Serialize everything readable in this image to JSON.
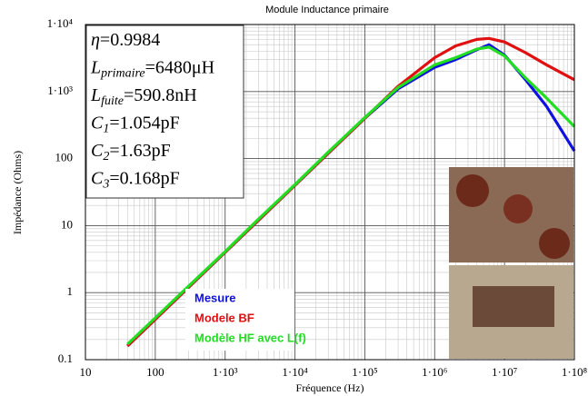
{
  "chart_data": {
    "type": "line",
    "title": "Module Inductance primaire",
    "xlabel": "Fréquence (Hz)",
    "ylabel": "Impédance (Ohms)",
    "xscale": "log",
    "yscale": "log",
    "xlim": [
      10,
      100000000
    ],
    "ylim": [
      0.1,
      10000
    ],
    "xticks": [
      10,
      100,
      {
        "value": 1000,
        "label": "1·10³"
      },
      {
        "value": 10000,
        "label": "1·10⁴"
      },
      {
        "value": 100000,
        "label": "1·10⁵"
      },
      {
        "value": 1000000,
        "label": "1·10⁶"
      },
      {
        "value": 10000000,
        "label": "1·10⁷"
      },
      {
        "value": 100000000,
        "label": "1·10⁸"
      }
    ],
    "yticks": [
      0.1,
      1,
      10,
      100,
      {
        "value": 1000,
        "label": "1·10³"
      },
      {
        "value": 10000,
        "label": "1·10⁴"
      }
    ],
    "grid": true,
    "minor_grid": true,
    "legend": "lower center",
    "x": [
      40,
      100,
      300,
      1000,
      3000,
      10000,
      30000,
      100000,
      300000,
      1000000,
      2000000,
      4000000,
      6000000,
      10000000,
      20000000,
      40000000,
      100000000
    ],
    "series": [
      {
        "name": "Mesure",
        "color": "#1010e0",
        "values": [
          0.16,
          0.4,
          1.2,
          4,
          12,
          40,
          120,
          400,
          1100,
          2300,
          3000,
          4200,
          5000,
          3500,
          1500,
          600,
          130
        ]
      },
      {
        "name": "Modele BF",
        "color": "#e01010",
        "values": [
          0.16,
          0.4,
          1.2,
          4,
          12,
          40,
          120,
          400,
          1200,
          3200,
          4800,
          6000,
          6200,
          5500,
          3800,
          2500,
          1500
        ]
      },
      {
        "name": "Modèle HF avec L(f)",
        "color": "#22dd22",
        "values": [
          0.17,
          0.42,
          1.25,
          4.1,
          12.5,
          41,
          125,
          410,
          1150,
          2500,
          3200,
          4300,
          4600,
          3400,
          1600,
          800,
          300
        ]
      }
    ],
    "annotations": [
      {
        "main": "η",
        "sub": "",
        "rest": "=0.9984"
      },
      {
        "main": "L",
        "sub": "primaire",
        "rest": "=6480μH"
      },
      {
        "main": "L",
        "sub": "fuite",
        "rest": "=590.8nH"
      },
      {
        "main": "C",
        "sub": "1",
        "rest": "=1.054pF"
      },
      {
        "main": "C",
        "sub": "2",
        "rest": "=1.63pF"
      },
      {
        "main": "C",
        "sub": "3",
        "rest": "=0.168pF"
      }
    ]
  }
}
